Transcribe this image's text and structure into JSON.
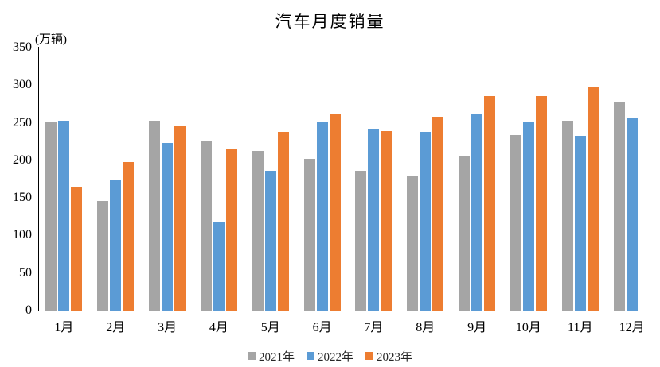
{
  "chart_data": {
    "type": "bar",
    "title": "汽车月度销量",
    "ylabel": "(万辆)",
    "xlabel": "",
    "categories": [
      "1月",
      "2月",
      "3月",
      "4月",
      "5月",
      "6月",
      "7月",
      "8月",
      "9月",
      "10月",
      "11月",
      "12月"
    ],
    "series": [
      {
        "name": "2021年",
        "color": "#A5A5A5",
        "values": [
          250.3,
          145.5,
          252.6,
          225.2,
          212.8,
          201.5,
          186.4,
          179.9,
          206.7,
          233.3,
          252.2,
          278.6
        ]
      },
      {
        "name": "2022年",
        "color": "#5B9BD5",
        "values": [
          253.1,
          173.7,
          223.4,
          118.1,
          186.2,
          250.2,
          242.0,
          238.3,
          261.0,
          250.5,
          232.8,
          255.6
        ]
      },
      {
        "name": "2023年",
        "color": "#ED7D31",
        "values": [
          164.9,
          197.6,
          245.1,
          215.9,
          238.2,
          262.2,
          238.7,
          258.2,
          285.8,
          285.3,
          297.0,
          null
        ]
      }
    ],
    "ylim": [
      0,
      350
    ],
    "yticks": [
      0,
      50,
      100,
      150,
      200,
      250,
      300,
      350
    ],
    "grid": false,
    "legend_position": "bottom",
    "axis_color": "#000000"
  }
}
